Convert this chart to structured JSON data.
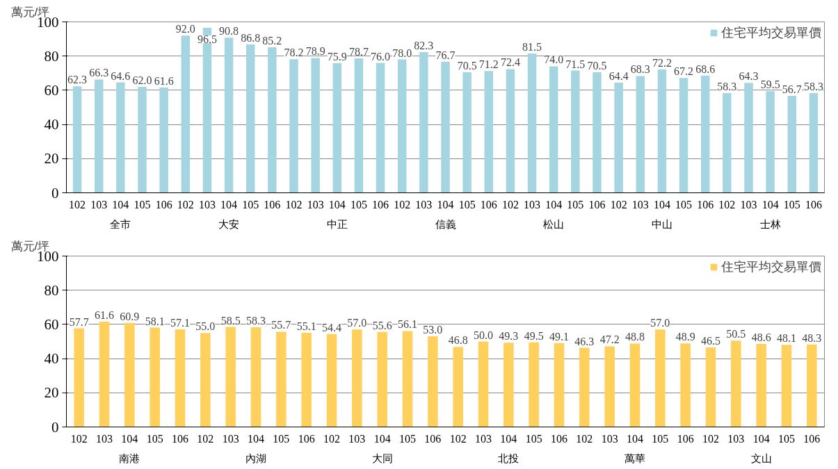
{
  "chart_data": [
    {
      "type": "bar",
      "ylabel": "萬元/坪",
      "categories": [
        "102",
        "103",
        "104",
        "105",
        "106",
        "102",
        "103",
        "104",
        "105",
        "106",
        "102",
        "103",
        "104",
        "105",
        "106",
        "102",
        "103",
        "104",
        "105",
        "106",
        "102",
        "103",
        "104",
        "105",
        "106",
        "102",
        "103",
        "104",
        "105",
        "106",
        "102",
        "103",
        "104",
        "105",
        "106"
      ],
      "annotations": [
        "全市",
        "大安",
        "中正",
        "信義",
        "松山",
        "中山",
        "士林"
      ],
      "series": [
        {
          "name": "住宅平均交易單價",
          "color": "#a5d5e0",
          "values": [
            62.3,
            66.3,
            64.6,
            62.0,
            61.6,
            92.0,
            96.5,
            90.8,
            86.8,
            85.2,
            78.2,
            78.9,
            75.9,
            78.7,
            76.0,
            78.0,
            82.3,
            76.7,
            70.5,
            71.2,
            72.4,
            81.5,
            74.0,
            71.5,
            70.5,
            64.4,
            68.3,
            72.2,
            67.2,
            68.6,
            58.3,
            64.3,
            59.5,
            56.7,
            58.3
          ],
          "value_labels": [
            "62.3",
            "66.3",
            "64.6",
            "62.0",
            "61.6",
            "92.0",
            "96.5",
            "90.8",
            "86.8",
            "85.2",
            "78.2",
            "78.9",
            "75.9",
            "78.7",
            "76.0",
            "78.0",
            "82.3",
            "76.7",
            "70.5",
            "71.2",
            "72.4",
            "81.5",
            "74.0",
            "71.5",
            "70.5",
            "64.4",
            "68.3",
            "72.2",
            "67.2",
            "68.6",
            "58.3",
            "64.3",
            "59.5",
            "56.7",
            "58.3"
          ]
        }
      ],
      "ylim": [
        0,
        100
      ],
      "yticks": [
        0,
        20,
        40,
        60,
        80,
        100
      ],
      "grid": "y",
      "legend": "top right"
    },
    {
      "type": "bar",
      "ylabel": "萬元/坪",
      "categories": [
        "102",
        "103",
        "104",
        "105",
        "106",
        "102",
        "103",
        "104",
        "105",
        "106",
        "102",
        "103",
        "104",
        "105",
        "106",
        "102",
        "103",
        "104",
        "105",
        "106",
        "102",
        "103",
        "104",
        "105",
        "106",
        "102",
        "103",
        "104",
        "105",
        "106"
      ],
      "annotations": [
        "南港",
        "內湖",
        "大同",
        "北投",
        "萬華",
        "文山"
      ],
      "series": [
        {
          "name": "住宅平均交易單價",
          "color": "#ffd05c",
          "values": [
            57.7,
            61.6,
            60.9,
            58.1,
            57.1,
            55.0,
            58.5,
            58.3,
            55.7,
            55.1,
            54.4,
            57.0,
            55.6,
            56.1,
            53.0,
            46.8,
            50.0,
            49.3,
            49.5,
            49.1,
            46.3,
            47.2,
            48.8,
            57.0,
            48.9,
            46.5,
            50.5,
            48.6,
            48.1,
            48.3
          ],
          "value_labels": [
            "57.7",
            "61.6",
            "60.9",
            "58.1",
            "57.1",
            "55.0",
            "58.5",
            "58.3",
            "55.7",
            "55.1",
            "54.4",
            "57.0",
            "55.6",
            "56.1",
            "53.0",
            "46.8",
            "50.0",
            "49.3",
            "49.5",
            "49.1",
            "46.3",
            "47.2",
            "48.8",
            "57.0",
            "48.9",
            "46.5",
            "50.5",
            "48.6",
            "48.1",
            "48.3"
          ]
        }
      ],
      "ylim": [
        0,
        100
      ],
      "yticks": [
        0,
        20,
        40,
        60,
        80,
        100
      ],
      "grid": "y",
      "legend": "top right"
    }
  ]
}
